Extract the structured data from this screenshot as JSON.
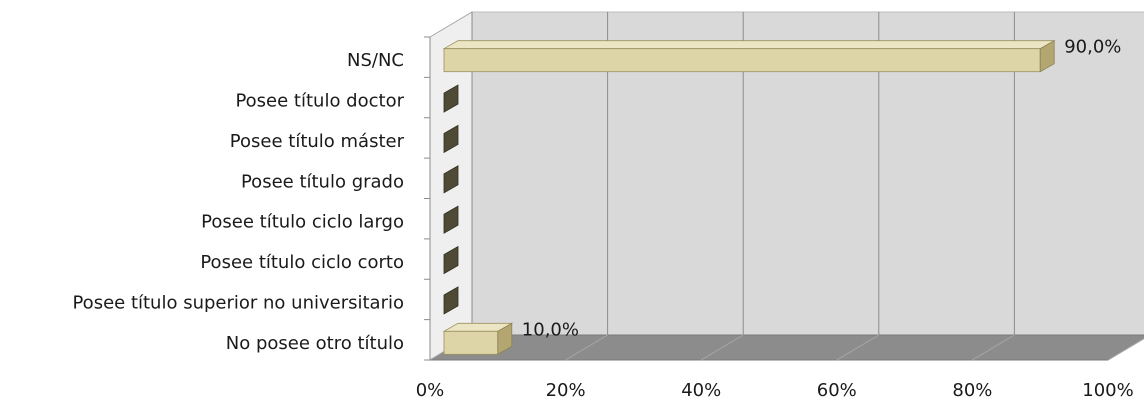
{
  "chart_data": {
    "type": "bar",
    "orientation": "horizontal",
    "three_d": true,
    "categories": [
      "No posee otro título",
      "Posee título superior no universitario",
      "Posee título ciclo corto",
      "Posee título ciclo largo",
      "Posee título grado",
      "Posee título máster",
      "Posee título doctor",
      "NS/NC"
    ],
    "values": [
      10.0,
      0.0,
      0.0,
      0.0,
      0.0,
      0.0,
      0.0,
      90.0
    ],
    "data_labels": [
      "10,0%",
      "",
      "",
      "",
      "",
      "",
      "",
      "90,0%"
    ],
    "xlim": [
      0,
      100
    ],
    "x_ticks": [
      0,
      20,
      40,
      60,
      80,
      100
    ],
    "x_tick_labels": [
      "0%",
      "20%",
      "40%",
      "60%",
      "80%",
      "100%"
    ],
    "title": "",
    "xlabel": "",
    "ylabel": "",
    "grid": true,
    "legend": "none",
    "colors": {
      "bar_face": "#ddd4a8",
      "bar_top": "#ece5c3",
      "bar_side": "#b3a671",
      "bar_zero": "#4f4a35",
      "back_wall": "#d9d9d9",
      "floor": "#8c8c8c",
      "side_wall": "#efefef",
      "grid": "#8c8c8c"
    }
  }
}
